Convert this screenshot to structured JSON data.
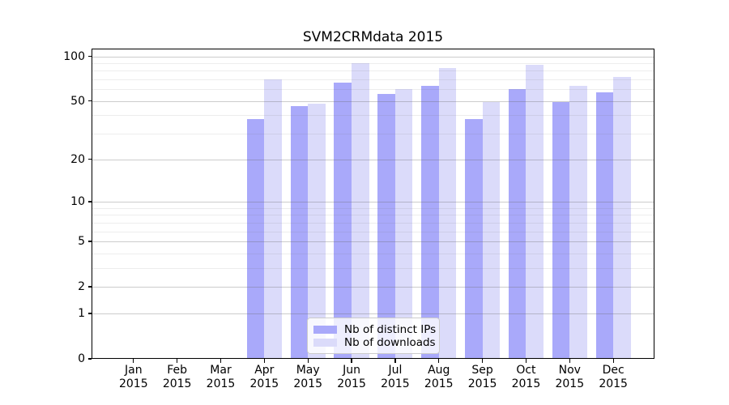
{
  "title": "SVM2CRMdata 2015",
  "chart_data": {
    "type": "bar",
    "title": "SVM2CRMdata 2015",
    "y_scale": "log1p",
    "categories": [
      "Jan",
      "Feb",
      "Mar",
      "Apr",
      "May",
      "Jun",
      "Jul",
      "Aug",
      "Sep",
      "Oct",
      "Nov",
      "Dec"
    ],
    "category_year": "2015",
    "series": [
      {
        "name": "Nb of distinct IPs",
        "color": "#a9a9fa",
        "values": [
          0,
          0,
          0,
          38,
          46,
          67,
          56,
          63,
          38,
          60,
          49,
          57
        ]
      },
      {
        "name": "Nb of downloads",
        "color": "#dbdbfa",
        "values": [
          0,
          0,
          0,
          70,
          48,
          90,
          60,
          83,
          49,
          88,
          63,
          73
        ]
      }
    ],
    "y_ticks": [
      0,
      1,
      2,
      5,
      10,
      20,
      50,
      100
    ],
    "y_minor_ticks": [
      3,
      4,
      6,
      7,
      8,
      9,
      30,
      40,
      60,
      70,
      80,
      90
    ],
    "ylim": [
      0,
      110
    ],
    "grid": true,
    "legend_position": "lower center",
    "frame_color": "#000000",
    "background_color": "#ffffff"
  }
}
